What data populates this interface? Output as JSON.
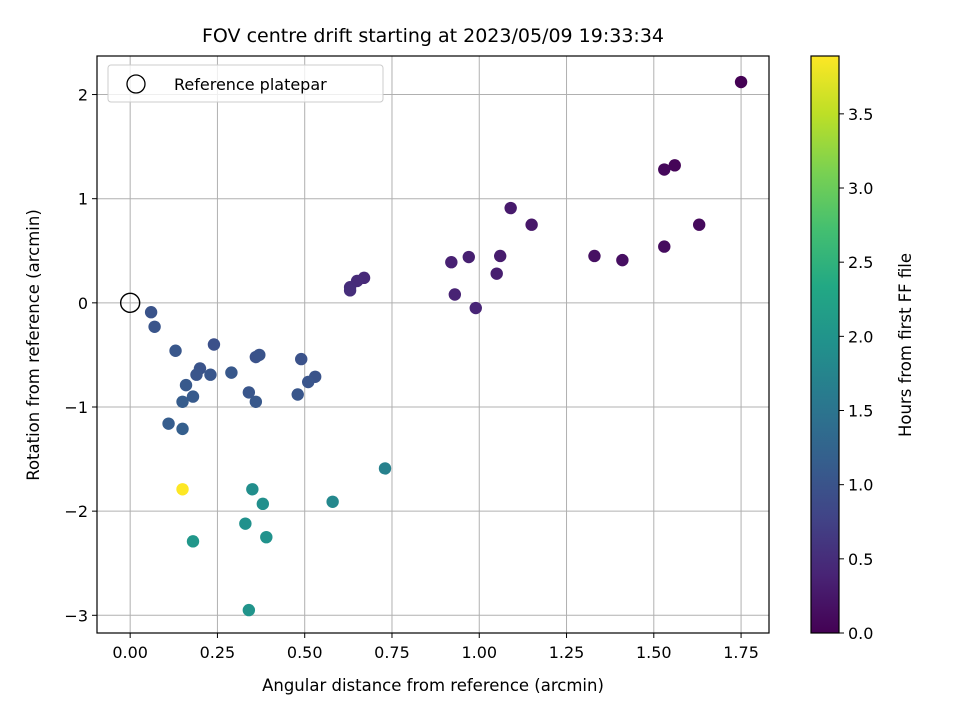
{
  "chart_data": {
    "type": "scatter",
    "title": "FOV centre drift starting at 2023/05/09 19:33:34",
    "xlabel": "Angular distance from reference (arcmin)",
    "ylabel": "Rotation from reference (arcmin)",
    "xlim": [
      -0.095,
      1.83
    ],
    "ylim": [
      -3.17,
      2.37
    ],
    "xticks": [
      0.0,
      0.25,
      0.5,
      0.75,
      1.0,
      1.25,
      1.5,
      1.75
    ],
    "xtick_labels": [
      "0.00",
      "0.25",
      "0.50",
      "0.75",
      "1.00",
      "1.25",
      "1.50",
      "1.75"
    ],
    "yticks": [
      -3,
      -2,
      -1,
      0,
      1,
      2
    ],
    "ytick_labels": [
      "−3",
      "−2",
      "−1",
      "0",
      "1",
      "2"
    ],
    "grid": true,
    "legend": {
      "position": "top-left",
      "entries": [
        "Reference platepar"
      ]
    },
    "reference_point": {
      "x": 0.0,
      "y": 0.0,
      "label": "Reference platepar"
    },
    "colorbar": {
      "label": "Hours from first FF file",
      "colormap": "viridis",
      "range": [
        0,
        3.89
      ],
      "ticks": [
        0.0,
        0.5,
        1.0,
        1.5,
        2.0,
        2.5,
        3.0,
        3.5
      ],
      "tick_labels": [
        "0.0",
        "0.5",
        "1.0",
        "1.5",
        "2.0",
        "2.5",
        "3.0",
        "3.5"
      ]
    },
    "points": [
      {
        "x": 1.75,
        "y": 2.12,
        "c": 0.0
      },
      {
        "x": 1.56,
        "y": 1.32,
        "c": 0.05
      },
      {
        "x": 1.53,
        "y": 1.28,
        "c": 0.08
      },
      {
        "x": 1.63,
        "y": 0.75,
        "c": 0.1
      },
      {
        "x": 1.53,
        "y": 0.54,
        "c": 0.12
      },
      {
        "x": 1.41,
        "y": 0.41,
        "c": 0.15
      },
      {
        "x": 1.33,
        "y": 0.45,
        "c": 0.17
      },
      {
        "x": 1.15,
        "y": 0.75,
        "c": 0.25
      },
      {
        "x": 1.09,
        "y": 0.91,
        "c": 0.28
      },
      {
        "x": 1.06,
        "y": 0.45,
        "c": 0.3
      },
      {
        "x": 1.05,
        "y": 0.28,
        "c": 0.32
      },
      {
        "x": 0.97,
        "y": 0.44,
        "c": 0.34
      },
      {
        "x": 0.92,
        "y": 0.39,
        "c": 0.36
      },
      {
        "x": 0.93,
        "y": 0.08,
        "c": 0.38
      },
      {
        "x": 0.99,
        "y": -0.05,
        "c": 0.4
      },
      {
        "x": 0.67,
        "y": 0.24,
        "c": 0.45
      },
      {
        "x": 0.65,
        "y": 0.21,
        "c": 0.47
      },
      {
        "x": 0.63,
        "y": 0.15,
        "c": 0.49
      },
      {
        "x": 0.63,
        "y": 0.12,
        "c": 0.51
      },
      {
        "x": 0.06,
        "y": -0.09,
        "c": 1.0
      },
      {
        "x": 0.07,
        "y": -0.23,
        "c": 1.02
      },
      {
        "x": 0.13,
        "y": -0.46,
        "c": 1.05
      },
      {
        "x": 0.24,
        "y": -0.4,
        "c": 0.95
      },
      {
        "x": 0.2,
        "y": -0.63,
        "c": 1.0
      },
      {
        "x": 0.19,
        "y": -0.69,
        "c": 1.02
      },
      {
        "x": 0.23,
        "y": -0.69,
        "c": 1.04
      },
      {
        "x": 0.29,
        "y": -0.67,
        "c": 1.06
      },
      {
        "x": 0.16,
        "y": -0.79,
        "c": 1.08
      },
      {
        "x": 0.18,
        "y": -0.9,
        "c": 1.1
      },
      {
        "x": 0.15,
        "y": -0.95,
        "c": 1.12
      },
      {
        "x": 0.11,
        "y": -1.16,
        "c": 1.14
      },
      {
        "x": 0.15,
        "y": -1.21,
        "c": 1.16
      },
      {
        "x": 0.36,
        "y": -0.52,
        "c": 0.98
      },
      {
        "x": 0.37,
        "y": -0.5,
        "c": 1.0
      },
      {
        "x": 0.34,
        "y": -0.86,
        "c": 1.04
      },
      {
        "x": 0.36,
        "y": -0.95,
        "c": 1.06
      },
      {
        "x": 0.49,
        "y": -0.54,
        "c": 0.98
      },
      {
        "x": 0.53,
        "y": -0.71,
        "c": 1.0
      },
      {
        "x": 0.51,
        "y": -0.76,
        "c": 1.02
      },
      {
        "x": 0.48,
        "y": -0.88,
        "c": 1.04
      },
      {
        "x": 0.73,
        "y": -1.59,
        "c": 1.7
      },
      {
        "x": 0.58,
        "y": -1.91,
        "c": 1.8
      },
      {
        "x": 0.35,
        "y": -1.79,
        "c": 1.9
      },
      {
        "x": 0.38,
        "y": -1.93,
        "c": 1.92
      },
      {
        "x": 0.33,
        "y": -2.12,
        "c": 1.94
      },
      {
        "x": 0.39,
        "y": -2.25,
        "c": 1.96
      },
      {
        "x": 0.18,
        "y": -2.29,
        "c": 2.05
      },
      {
        "x": 0.34,
        "y": -2.95,
        "c": 2.0
      },
      {
        "x": 0.15,
        "y": -1.79,
        "c": 3.89
      }
    ]
  }
}
